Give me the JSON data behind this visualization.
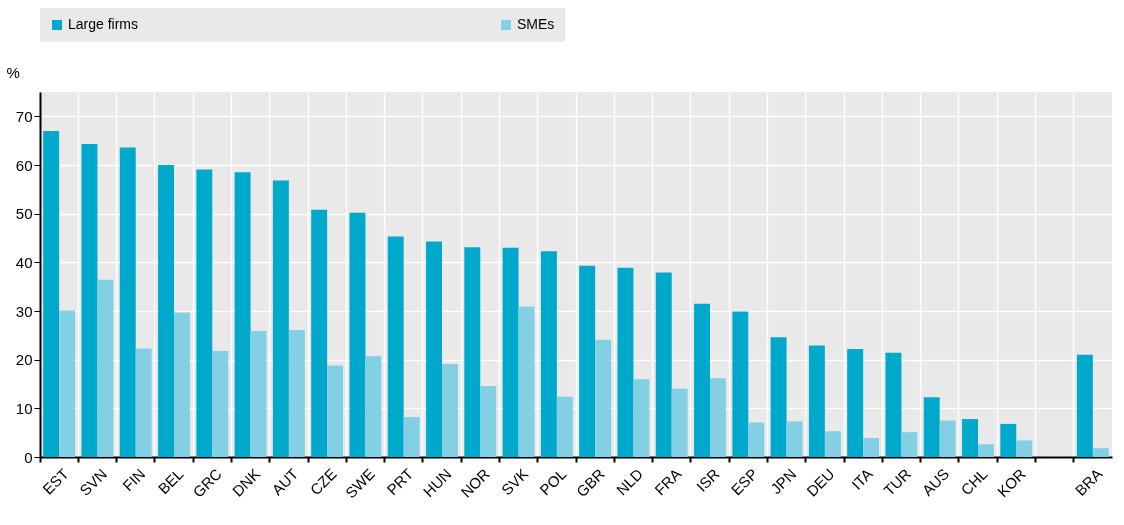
{
  "chart_data": {
    "type": "bar",
    "ylabel": "%",
    "categories": [
      "EST",
      "SVN",
      "FIN",
      "BEL",
      "GRC",
      "DNK",
      "AUT",
      "CZE",
      "SWE",
      "PRT",
      "HUN",
      "NOR",
      "SVK",
      "POL",
      "GBR",
      "NLD",
      "FRA",
      "ISR",
      "ESP",
      "JPN",
      "DEU",
      "ITA",
      "TUR",
      "AUS",
      "CHL",
      "KOR",
      null,
      "BRA"
    ],
    "series": [
      {
        "name": "Large firms",
        "color": "#00a9cb",
        "values": [
          67,
          64.3,
          63.6,
          60,
          59.1,
          58.5,
          56.8,
          50.8,
          50.2,
          45.3,
          44.3,
          43.1,
          43,
          42.3,
          39.3,
          38.9,
          37.9,
          31.5,
          29.9,
          24.6,
          22.9,
          22.2,
          21.4,
          12.3,
          7.8,
          6.8,
          null,
          21
        ]
      },
      {
        "name": "SMEs",
        "color": "#83d0e4",
        "values": [
          30.1,
          36.4,
          22.3,
          29.7,
          21.8,
          25.9,
          26.1,
          18.8,
          20.7,
          8.2,
          19.1,
          14.6,
          30.9,
          12.4,
          24.1,
          16,
          14,
          16.2,
          7.1,
          7.3,
          5.3,
          3.9,
          5.1,
          7.5,
          2.6,
          3.4,
          null,
          1.8
        ]
      }
    ],
    "ylim": [
      0,
      75
    ],
    "yticks": [
      0,
      10,
      20,
      30,
      40,
      50,
      60,
      70
    ],
    "grid": true,
    "legend": "top"
  }
}
